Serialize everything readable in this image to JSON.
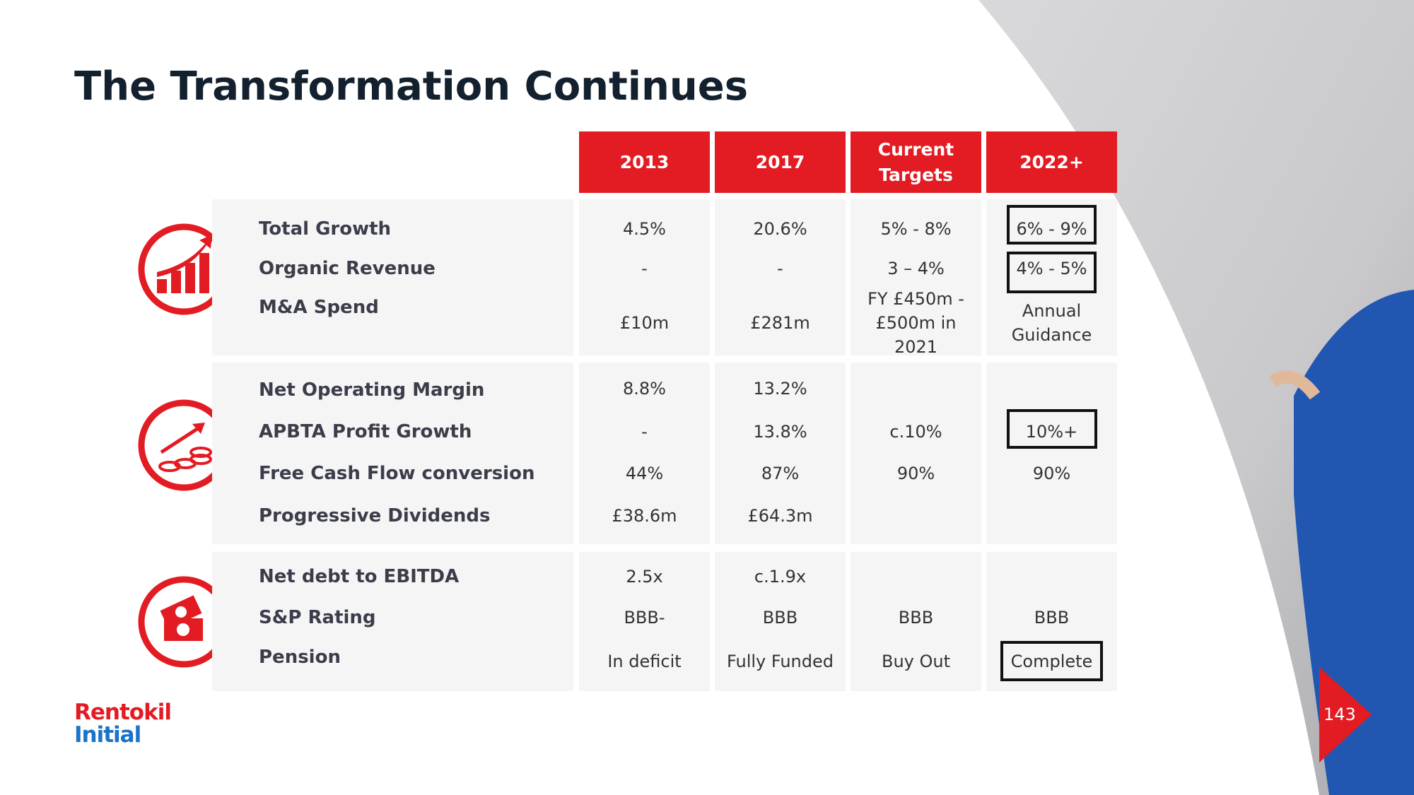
{
  "title": "The Transformation Continues",
  "table": {
    "headers": [
      "2013",
      "2017",
      "Current Targets",
      "2022+"
    ],
    "groups": [
      {
        "rows": [
          {
            "label": "Total Growth",
            "cells": [
              "4.5%",
              "20.6%",
              "5% - 8%",
              "6% - 9%"
            ]
          },
          {
            "label": "Organic Revenue",
            "cells": [
              "-",
              "-",
              "3 – 4%",
              "4% - 5%"
            ]
          },
          {
            "label": "M&A Spend",
            "cells": [
              "£10m",
              "£281m",
              "FY £450m - £500m in 2021",
              "Annual Guidance"
            ]
          }
        ]
      },
      {
        "rows": [
          {
            "label": "Net Operating Margin",
            "cells": [
              "8.8%",
              "13.2%",
              null,
              null
            ]
          },
          {
            "label": "APBTA Profit Growth",
            "cells": [
              "-",
              "13.8%",
              "c.10%",
              "10%+"
            ]
          },
          {
            "label": "Free Cash Flow conversion",
            "cells": [
              "44%",
              "87%",
              "90%",
              "90%"
            ]
          },
          {
            "label": "Progressive Dividends",
            "cells": [
              "£38.6m",
              "£64.3m",
              null,
              null
            ]
          }
        ]
      },
      {
        "rows": [
          {
            "label": "Net debt to EBITDA",
            "cells": [
              "2.5x",
              "c.1.9x",
              null,
              null
            ]
          },
          {
            "label": "S&P Rating",
            "cells": [
              "BBB-",
              "BBB",
              "BBB",
              "BBB"
            ]
          },
          {
            "label": "Pension",
            "cells": [
              "In deficit",
              "Fully Funded",
              "Buy Out",
              "Complete"
            ]
          }
        ]
      }
    ]
  },
  "footer": {
    "logo": [
      "Rentokil",
      "Initial"
    ],
    "page": "143"
  }
}
